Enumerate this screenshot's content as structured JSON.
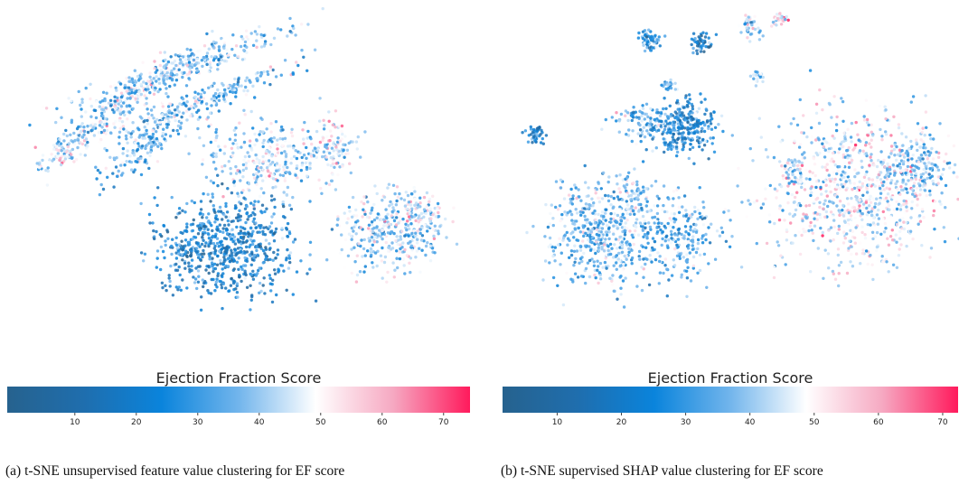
{
  "chart_data": [
    {
      "type": "scatter",
      "colorbar_label": "Ejection Fraction Score",
      "clim": [
        -1,
        74.3
      ],
      "cticks": [
        10,
        20,
        30,
        40,
        50,
        60,
        70
      ],
      "colormap": [
        "#26628e",
        "#1f6eae",
        "#0a84dc",
        "#72b5ec",
        "#ffffff",
        "#f6a9c2",
        "#ff1a5c"
      ],
      "caption": "(a)  t-SNE unsupervised feature value clustering for EF score"
    },
    {
      "type": "scatter",
      "colorbar_label": "Ejection Fraction Score",
      "clim": [
        1.5,
        72.4
      ],
      "cticks": [
        10,
        20,
        30,
        40,
        50,
        60,
        70
      ],
      "colormap": [
        "#26628e",
        "#1f6eae",
        "#0a84dc",
        "#72b5ec",
        "#ffffff",
        "#f6a9c2",
        "#ff1a5c"
      ],
      "caption": "(b)  t-SNE supervised SHAP value clustering for EF score"
    }
  ]
}
